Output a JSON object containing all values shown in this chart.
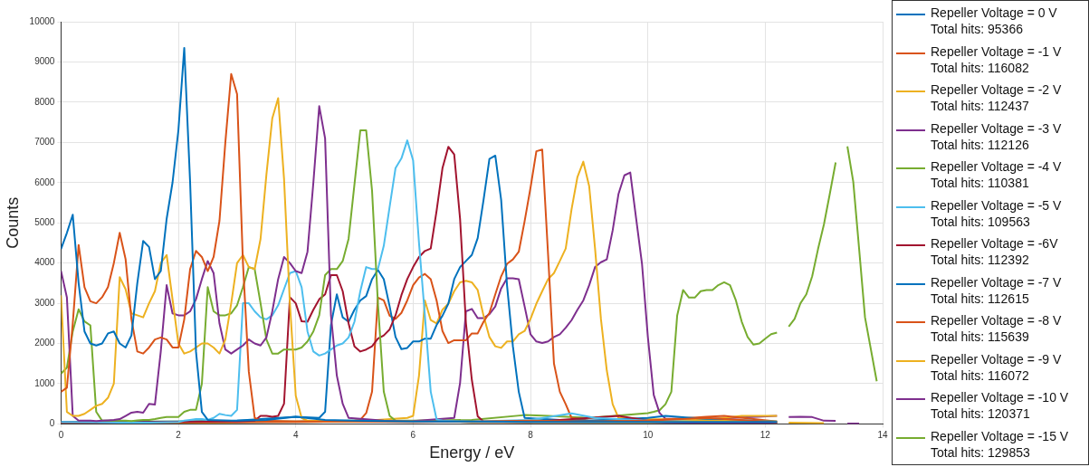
{
  "chart_data": {
    "type": "line",
    "xlabel": "Energy / eV",
    "ylabel": "Counts",
    "xlim": [
      0,
      14
    ],
    "xticks": [
      0,
      2,
      4,
      6,
      8,
      10,
      12,
      14
    ],
    "ylim": [
      0,
      10000
    ],
    "yticks": [
      0,
      1000,
      2000,
      3000,
      4000,
      5000,
      6000,
      7000,
      8000,
      9000,
      10000
    ],
    "grid": true,
    "legend": "right",
    "marker": "none",
    "line_style": "solid",
    "series": [
      {
        "name": "Repeller Voltage = 0 V\nTotal hits: 95366",
        "color": "#0072bd",
        "x": [
          0,
          0.1,
          0.2,
          0.3,
          0.4,
          0.5,
          0.6,
          0.7,
          0.8,
          0.9,
          1,
          1.1,
          1.2,
          1.3,
          1.4,
          1.5,
          1.6,
          1.7,
          1.8,
          1.9,
          2,
          2.1,
          2.2,
          2.3,
          2.4,
          2.5,
          3,
          3.5,
          4,
          4.5,
          5,
          6,
          7,
          8,
          9,
          10,
          11,
          12.2
        ],
        "values": [
          4350,
          4750,
          5200,
          3500,
          2300,
          2000,
          1950,
          2000,
          2250,
          2300,
          2000,
          1900,
          2200,
          3500,
          4550,
          4400,
          3600,
          3800,
          5100,
          6000,
          7300,
          9350,
          6000,
          1800,
          300,
          100,
          80,
          100,
          180,
          100,
          80,
          60,
          60,
          50,
          50,
          50,
          50,
          50
        ]
      },
      {
        "name": "Repeller Voltage = -1 V\nTotal hits: 116082",
        "color": "#d95319",
        "x": [
          0,
          0.1,
          0.2,
          0.3,
          0.4,
          0.5,
          0.6,
          0.7,
          0.8,
          0.9,
          1,
          1.1,
          1.2,
          1.3,
          1.4,
          1.5,
          1.6,
          1.7,
          1.8,
          1.9,
          2,
          2.1,
          2.2,
          2.3,
          2.4,
          2.5,
          2.6,
          2.7,
          2.8,
          2.9,
          3,
          3.1,
          3.2,
          3.3,
          3.4,
          4,
          5,
          6,
          7,
          8,
          9,
          10,
          11,
          12.2
        ],
        "values": [
          800,
          900,
          2500,
          4450,
          3400,
          3050,
          3000,
          3150,
          3400,
          4000,
          4750,
          4100,
          2600,
          1800,
          1750,
          1900,
          2100,
          2150,
          2100,
          1900,
          1900,
          2600,
          3850,
          4300,
          4150,
          3800,
          4150,
          5050,
          7000,
          8700,
          8200,
          4000,
          1300,
          150,
          80,
          60,
          60,
          50,
          60,
          80,
          60,
          80,
          150,
          40
        ]
      },
      {
        "name": "Repeller Voltage = -2 V\nTotal hits: 112437",
        "color": "#edb120",
        "x": [
          0,
          0.1,
          0.2,
          0.3,
          0.4,
          0.5,
          0.6,
          0.7,
          0.8,
          0.9,
          1,
          1.1,
          1.2,
          1.3,
          1.4,
          1.5,
          1.6,
          1.7,
          1.8,
          1.9,
          2,
          2.1,
          2.2,
          2.3,
          2.4,
          2.5,
          2.6,
          2.7,
          2.8,
          2.9,
          3,
          3.1,
          3.2,
          3.3,
          3.4,
          3.5,
          3.6,
          3.7,
          3.8,
          3.9,
          4,
          4.1,
          4.2,
          5,
          6,
          7,
          8,
          9,
          10,
          11,
          12.2
        ],
        "values": [
          3200,
          300,
          200,
          200,
          250,
          350,
          450,
          500,
          650,
          1000,
          3650,
          3350,
          2750,
          2700,
          2650,
          3000,
          3300,
          4000,
          4200,
          3100,
          2000,
          1750,
          1800,
          1900,
          2000,
          2000,
          1900,
          1750,
          2100,
          3000,
          4000,
          4200,
          3900,
          3850,
          4600,
          6200,
          7600,
          8100,
          6100,
          3000,
          700,
          150,
          80,
          60,
          60,
          50,
          40,
          40,
          40,
          80,
          60
        ]
      },
      {
        "name": "Repeller Voltage = -3 V\nTotal hits: 112126",
        "color": "#7e2f8e",
        "x": [
          0,
          0.1,
          0.2,
          0.3,
          0.4,
          0.5,
          0.6,
          0.7,
          0.8,
          0.9,
          1,
          1.1,
          1.2,
          1.3,
          1.4,
          1.5,
          1.6,
          1.7,
          1.8,
          1.9,
          2,
          2.1,
          2.2,
          2.3,
          2.4,
          2.5,
          2.6,
          2.7,
          2.8,
          2.9,
          3,
          3.1,
          3.2,
          3.3,
          3.4,
          3.5,
          3.6,
          3.7,
          3.8,
          3.9,
          4,
          4.1,
          4.2,
          4.3,
          4.4,
          4.5,
          4.6,
          4.7,
          4.8,
          4.9,
          5.5,
          6,
          7,
          8,
          9,
          10,
          11,
          12.2
        ],
        "values": [
          3800,
          3150,
          200,
          80,
          80,
          80,
          70,
          80,
          90,
          100,
          120,
          200,
          280,
          300,
          280,
          500,
          480,
          1800,
          3450,
          2750,
          2700,
          2700,
          2800,
          3100,
          3600,
          4050,
          3750,
          2500,
          1850,
          1750,
          1850,
          1950,
          2100,
          2000,
          1950,
          2150,
          2800,
          3600,
          4150,
          4000,
          3800,
          3750,
          4280,
          6000,
          7900,
          7100,
          2700,
          1200,
          500,
          150,
          80,
          60,
          50,
          40,
          40,
          40,
          30,
          30
        ]
      },
      {
        "name": "Repeller Voltage = -4 V\nTotal hits: 110381",
        "color": "#77ac30",
        "x": [
          0,
          0.1,
          0.2,
          0.3,
          0.4,
          0.5,
          0.6,
          0.7,
          0.8,
          0.9,
          1,
          1.1,
          1.2,
          1.3,
          1.4,
          1.5,
          1.6,
          1.7,
          1.8,
          1.9,
          2,
          2.1,
          2.2,
          2.3,
          2.4,
          2.5,
          2.6,
          2.7,
          2.8,
          2.9,
          3,
          3.1,
          3.2,
          3.3,
          3.4,
          3.5,
          3.6,
          3.7,
          3.8,
          3.9,
          4,
          4.1,
          4.2,
          4.3,
          4.4,
          4.5,
          4.6,
          4.7,
          4.8,
          4.9,
          5,
          5.1,
          5.2,
          5.3,
          5.4,
          5.5,
          5.6,
          5.7,
          6,
          7,
          8,
          9,
          10,
          11,
          12.2
        ],
        "values": [
          1250,
          1400,
          2300,
          2850,
          2550,
          2450,
          300,
          80,
          80,
          80,
          80,
          80,
          70,
          90,
          100,
          100,
          120,
          150,
          170,
          170,
          170,
          300,
          350,
          350,
          1000,
          3400,
          2800,
          2700,
          2700,
          2750,
          2950,
          3400,
          3900,
          3850,
          3000,
          2100,
          1750,
          1750,
          1850,
          1850,
          1850,
          1900,
          2050,
          2300,
          2700,
          3700,
          3850,
          3850,
          4050,
          4600,
          5950,
          7300,
          7300,
          5800,
          3000,
          800,
          200,
          80,
          60,
          50,
          60,
          50,
          40,
          30,
          30
        ]
      },
      {
        "name": "Repeller Voltage = -5 V\nTotal hits: 109563",
        "color": "#4dbeee",
        "x": [
          0,
          0.5,
          1,
          1.5,
          2,
          2.1,
          2.2,
          2.3,
          2.4,
          2.5,
          2.6,
          2.7,
          2.8,
          2.9,
          3,
          3.1,
          3.2,
          3.3,
          3.4,
          3.5,
          3.6,
          3.7,
          3.8,
          3.9,
          4,
          4.1,
          4.2,
          4.3,
          4.4,
          4.5,
          4.6,
          4.7,
          4.8,
          4.9,
          5,
          5.1,
          5.2,
          5.3,
          5.4,
          5.5,
          5.6,
          5.7,
          5.8,
          5.9,
          6,
          6.1,
          6.2,
          6.3,
          6.4,
          6.5,
          7,
          8,
          8.7,
          9.1,
          10,
          11,
          12.2
        ],
        "values": [
          50,
          40,
          30,
          30,
          50,
          80,
          100,
          120,
          120,
          100,
          150,
          250,
          220,
          200,
          350,
          3000,
          3000,
          2800,
          2650,
          2600,
          2700,
          2950,
          3350,
          3750,
          3800,
          3400,
          2300,
          1800,
          1700,
          1750,
          1850,
          1950,
          2000,
          2150,
          2540,
          3300,
          3900,
          3850,
          3850,
          4430,
          5400,
          6360,
          6600,
          7050,
          6550,
          4500,
          2700,
          800,
          110,
          80,
          60,
          100,
          260,
          150,
          80,
          60,
          50
        ]
      },
      {
        "name": "Repeller Voltage = -6V\nTotal hits: 112392",
        "color": "#a2142f",
        "x": [
          0,
          1,
          2,
          3,
          3.3,
          3.4,
          3.5,
          3.6,
          3.7,
          3.8,
          3.9,
          4,
          4.1,
          4.2,
          4.3,
          4.4,
          4.5,
          4.6,
          4.7,
          4.8,
          4.9,
          5,
          5.1,
          5.2,
          5.3,
          5.4,
          5.5,
          5.6,
          5.7,
          5.8,
          5.9,
          6,
          6.1,
          6.2,
          6.3,
          6.4,
          6.5,
          6.6,
          6.7,
          6.8,
          6.9,
          7,
          7.1,
          7.2,
          8,
          9.5,
          10,
          11,
          12.2
        ],
        "values": [
          40,
          40,
          50,
          60,
          80,
          200,
          200,
          180,
          200,
          500,
          3150,
          3000,
          2550,
          2540,
          2840,
          3100,
          3220,
          3700,
          3700,
          3300,
          2500,
          1930,
          1800,
          1850,
          1930,
          2120,
          2200,
          2350,
          2700,
          3200,
          3600,
          3900,
          4150,
          4300,
          4360,
          5300,
          6360,
          6890,
          6700,
          5100,
          2500,
          1100,
          190,
          60,
          50,
          200,
          80,
          40,
          30
        ]
      },
      {
        "name": "Repeller Voltage = -7 V\nTotal hits: 112615",
        "color": "#0072bd",
        "x": [
          0,
          1,
          2,
          3,
          4,
          4.4,
          4.5,
          4.6,
          4.7,
          4.8,
          4.9,
          5,
          5.1,
          5.2,
          5.3,
          5.4,
          5.5,
          5.6,
          5.7,
          5.8,
          5.9,
          6,
          6.1,
          6.2,
          6.3,
          6.4,
          6.5,
          6.6,
          6.7,
          6.8,
          6.9,
          7,
          7.1,
          7.2,
          7.3,
          7.4,
          7.5,
          7.6,
          7.7,
          7.8,
          7.9,
          8.5,
          9,
          10,
          10.3,
          11,
          12.2
        ],
        "values": [
          50,
          50,
          60,
          80,
          180,
          150,
          300,
          2460,
          3220,
          2650,
          2540,
          2840,
          3070,
          3180,
          3600,
          3830,
          3600,
          2920,
          2160,
          1860,
          1890,
          2050,
          2050,
          2120,
          2120,
          2460,
          2690,
          2990,
          3600,
          3900,
          4050,
          4200,
          4620,
          5570,
          6590,
          6670,
          5570,
          3450,
          1930,
          800,
          150,
          100,
          80,
          150,
          200,
          120,
          60
        ]
      },
      {
        "name": "Repeller Voltage = -8 V\nTotal hits: 115639",
        "color": "#d95319",
        "x": [
          0,
          1,
          2,
          3,
          4,
          5,
          5.1,
          5.2,
          5.3,
          5.4,
          5.5,
          5.6,
          5.7,
          5.8,
          5.9,
          6,
          6.1,
          6.2,
          6.3,
          6.4,
          6.5,
          6.6,
          6.7,
          6.8,
          6.9,
          7,
          7.1,
          7.2,
          7.3,
          7.4,
          7.5,
          7.6,
          7.7,
          7.8,
          7.9,
          8,
          8.1,
          8.2,
          8.3,
          8.4,
          8.5,
          8.6,
          8.7,
          9,
          10,
          11,
          11.3,
          12.2
        ],
        "values": [
          30,
          30,
          40,
          50,
          60,
          80,
          100,
          270,
          800,
          3140,
          3070,
          2690,
          2610,
          2760,
          3070,
          3450,
          3640,
          3730,
          3600,
          3070,
          2310,
          2010,
          2080,
          2080,
          2080,
          2250,
          2250,
          2540,
          2760,
          3220,
          3670,
          3980,
          4090,
          4280,
          5040,
          5870,
          6780,
          6820,
          4200,
          1500,
          800,
          490,
          150,
          80,
          80,
          180,
          200,
          60
        ]
      },
      {
        "name": "Repeller Voltage = -9 V\nTotal hits: 116072",
        "color": "#edb120",
        "x": [
          0,
          1,
          2,
          3,
          4,
          5,
          5.9,
          6,
          6.1,
          6.2,
          6.3,
          6.4,
          6.5,
          6.6,
          6.7,
          6.8,
          6.9,
          7,
          7.1,
          7.2,
          7.3,
          7.4,
          7.5,
          7.6,
          7.7,
          7.8,
          7.9,
          8,
          8.1,
          8.2,
          8.3,
          8.4,
          8.5,
          8.6,
          8.7,
          8.8,
          8.9,
          9,
          9.1,
          9.2,
          9.3,
          9.4,
          9.5,
          10,
          11,
          11.6,
          12,
          12.2,
          12.3,
          12.4,
          13
        ],
        "values": [
          30,
          30,
          30,
          40,
          50,
          60,
          150,
          200,
          1200,
          3070,
          2580,
          2500,
          2840,
          2990,
          3300,
          3520,
          3560,
          3520,
          3330,
          2690,
          2160,
          1930,
          1890,
          2050,
          2050,
          2230,
          2310,
          2610,
          2990,
          3300,
          3600,
          3750,
          4050,
          4360,
          5340,
          6140,
          6520,
          5910,
          4360,
          2610,
          1330,
          490,
          150,
          120,
          100,
          200,
          200,
          200,
          null,
          30,
          20
        ]
      },
      {
        "name": "Repeller Voltage = -10 V\nTotal hits: 120371",
        "color": "#7e2f8e",
        "x": [
          0,
          1,
          2,
          3,
          4,
          5,
          6,
          6.7,
          6.8,
          6.9,
          7,
          7.1,
          7.2,
          7.3,
          7.4,
          7.5,
          7.6,
          7.7,
          7.8,
          7.9,
          8,
          8.1,
          8.2,
          8.3,
          8.4,
          8.5,
          8.6,
          8.7,
          8.8,
          8.9,
          9,
          9.1,
          9.2,
          9.3,
          9.4,
          9.5,
          9.6,
          9.7,
          9.8,
          9.9,
          10,
          10.1,
          10.2,
          10.3,
          11,
          12.2,
          12.3,
          12.4,
          12.6,
          12.8,
          13,
          13.2,
          13.3,
          13.4,
          13.6
        ],
        "values": [
          30,
          30,
          40,
          40,
          50,
          60,
          70,
          150,
          1020,
          2800,
          2860,
          2630,
          2630,
          2730,
          2920,
          3370,
          3620,
          3620,
          3600,
          2920,
          2230,
          2050,
          2010,
          2050,
          2160,
          2230,
          2390,
          2580,
          2840,
          3070,
          3450,
          3900,
          4020,
          4090,
          4810,
          5720,
          6180,
          6250,
          5110,
          3980,
          2160,
          720,
          270,
          130,
          120,
          200,
          null,
          170,
          180,
          170,
          80,
          75,
          null,
          10,
          10
        ]
      },
      {
        "name": "Repeller Voltage = -15 V\nTotal hits: 129853",
        "color": "#77ac30",
        "x": [
          0,
          1,
          2,
          3,
          4,
          5,
          6,
          7,
          7.9,
          8.3,
          9,
          10,
          10.1,
          10.2,
          10.3,
          10.4,
          10.5,
          10.6,
          10.7,
          10.8,
          10.9,
          11,
          11.1,
          11.2,
          11.3,
          11.4,
          11.5,
          11.6,
          11.7,
          11.8,
          11.9,
          12,
          12.1,
          12.2,
          12.3,
          12.4,
          12.5,
          12.6,
          12.7,
          12.8,
          12.9,
          13,
          13.1,
          13.2,
          13.3,
          13.4,
          13.5,
          13.6,
          13.7,
          13.9
        ],
        "values": [
          50,
          60,
          60,
          70,
          60,
          80,
          80,
          100,
          220,
          200,
          150,
          270,
          300,
          340,
          490,
          800,
          2700,
          3330,
          3140,
          3140,
          3300,
          3330,
          3330,
          3450,
          3520,
          3450,
          3070,
          2540,
          2160,
          1970,
          2000,
          2120,
          2230,
          2270,
          null,
          2420,
          2610,
          3000,
          3220,
          3670,
          4350,
          4960,
          5720,
          6500,
          null,
          6900,
          6020,
          4350,
          2650,
          1060
        ]
      }
    ]
  }
}
